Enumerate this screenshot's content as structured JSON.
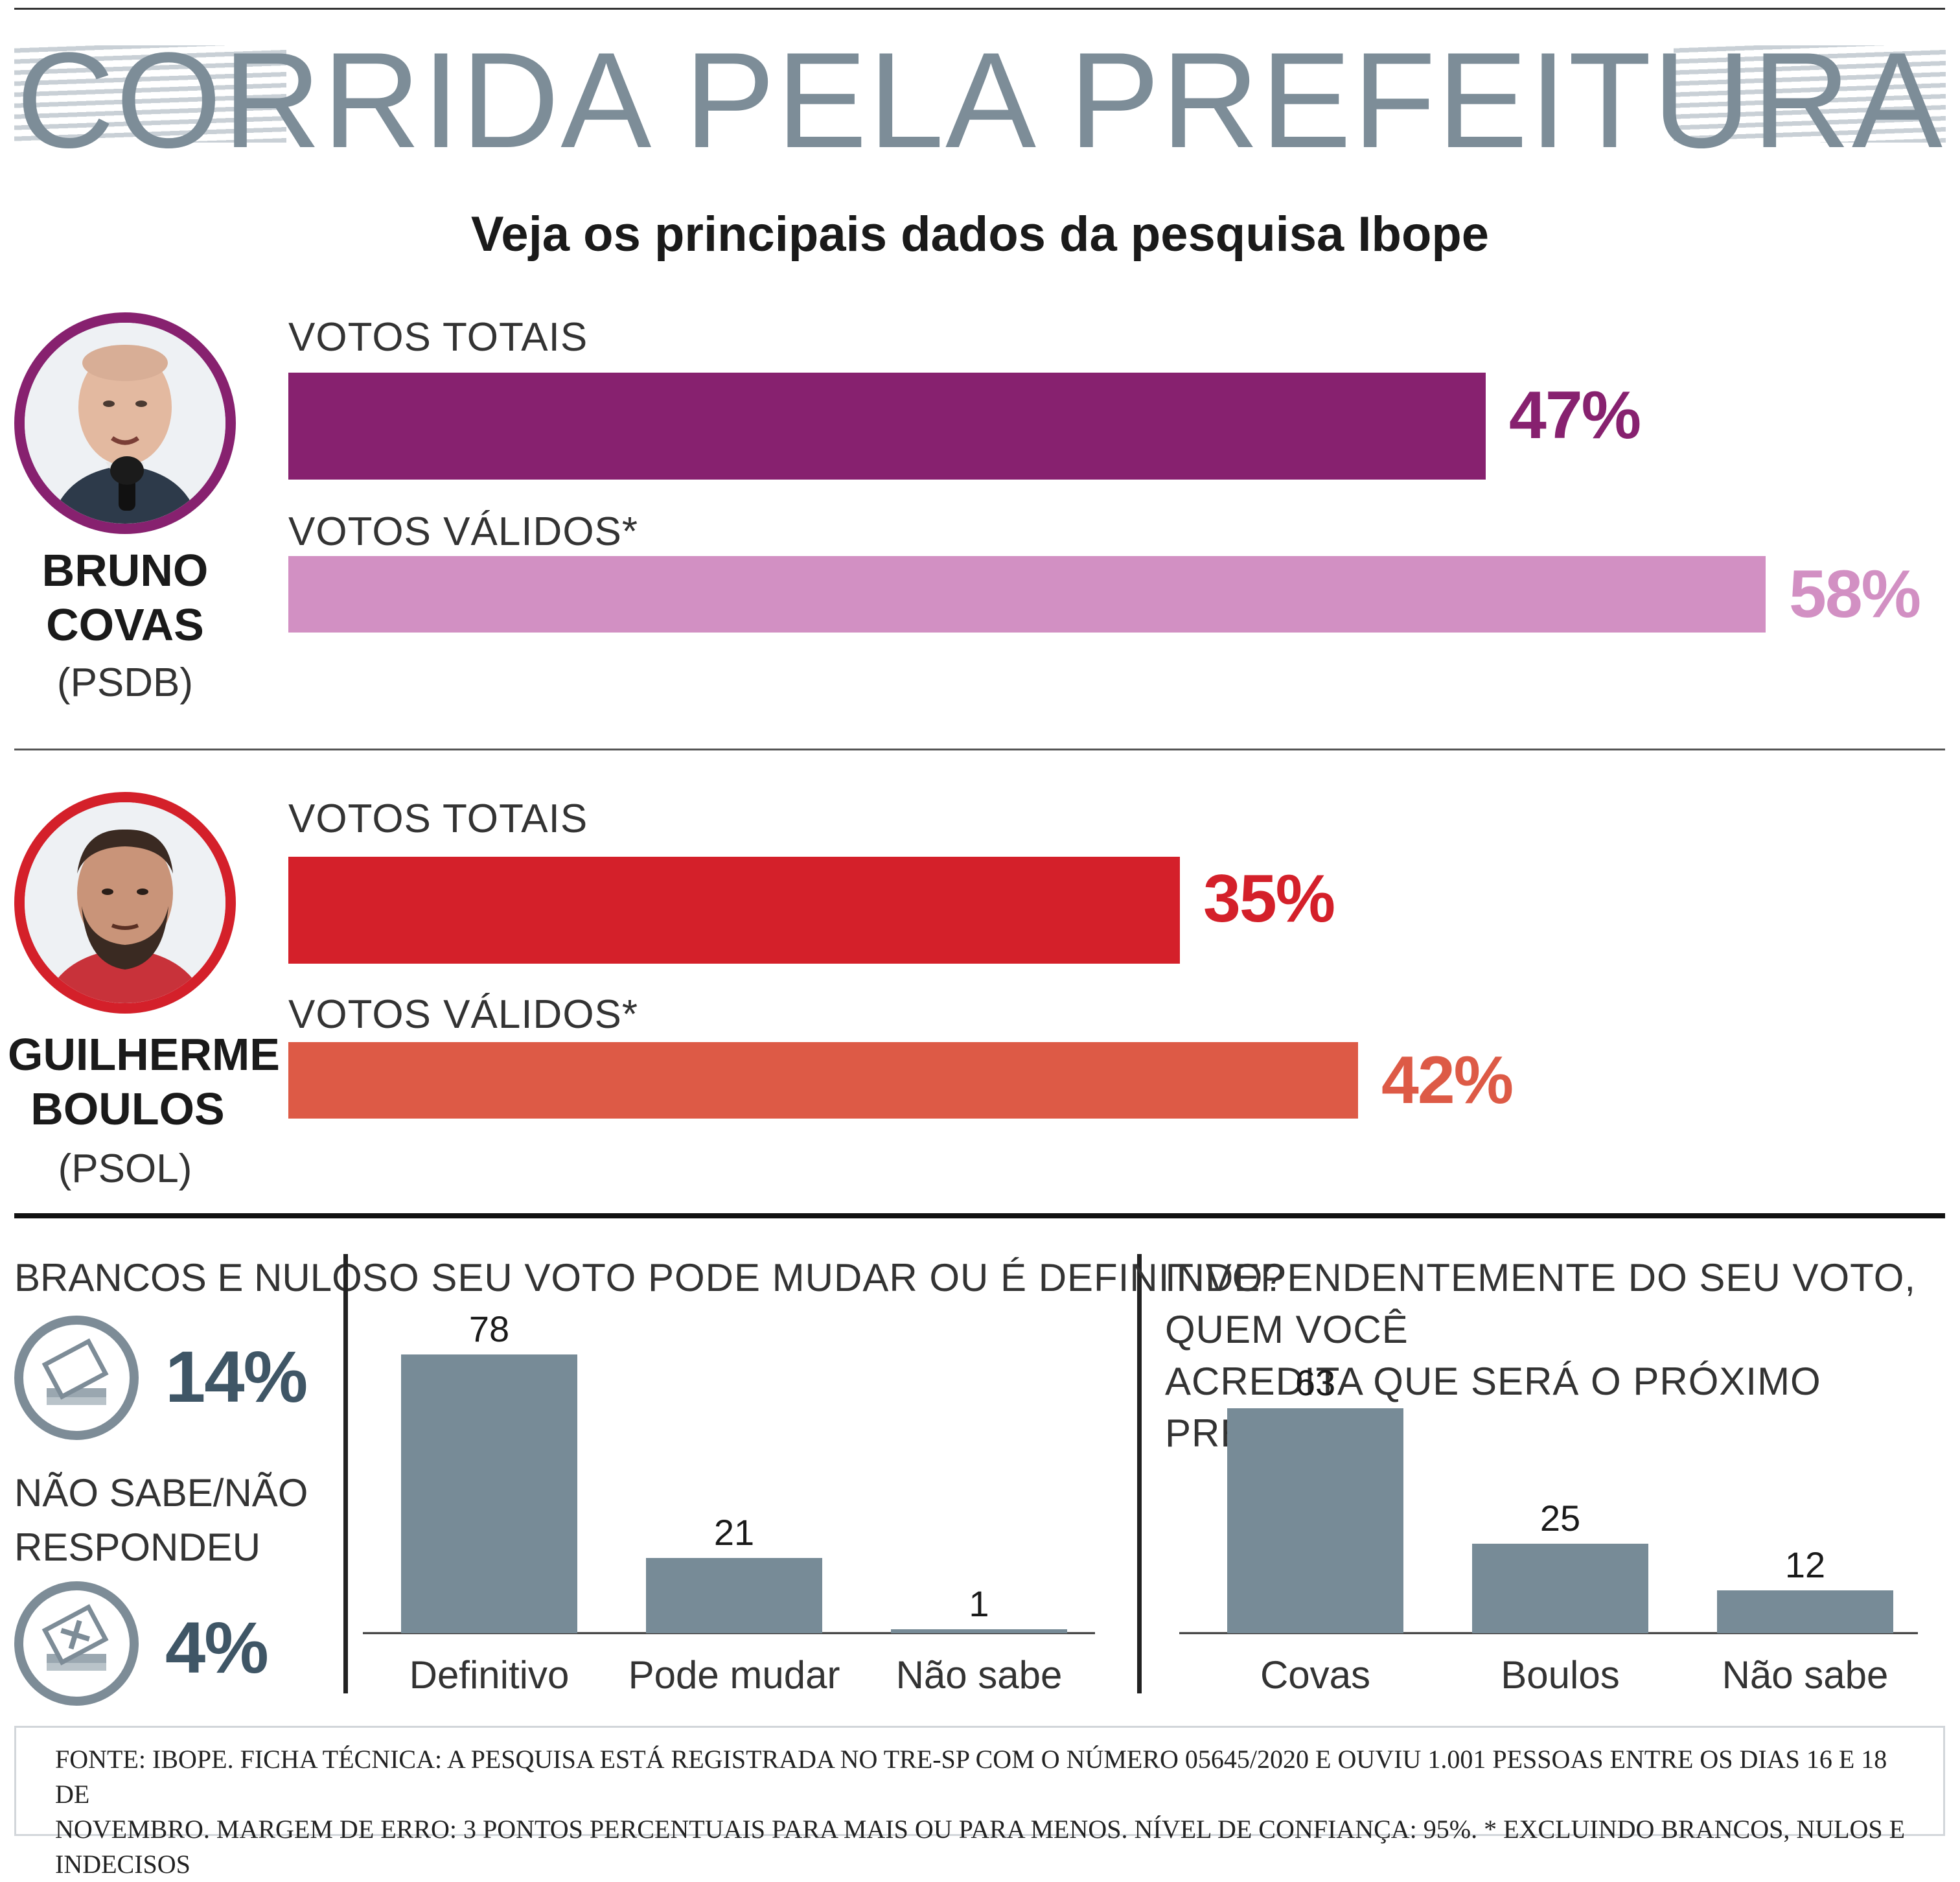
{
  "header": {
    "title": "CORRIDA PELA PREFEITURA",
    "subtitle": "Veja os principais dados da pesquisa Ibope"
  },
  "labels": {
    "votos_totais": "VOTOS TOTAIS",
    "votos_validos": "VOTOS VÁLIDOS*"
  },
  "candidates": [
    {
      "name_line1": "BRUNO",
      "name_line2": "COVAS",
      "party": "(PSDB)",
      "votos_totais": "47%",
      "votos_validos": "58%"
    },
    {
      "name_line1": "GUILHERME",
      "name_line2": "BOULOS",
      "party": "(PSOL)",
      "votos_totais": "35%",
      "votos_validos": "42%"
    }
  ],
  "side": {
    "brancos_label": "BRANCOS E NULOS",
    "brancos_value": "14%",
    "nao_sabe_line1": "NÃO SABE/NÃO",
    "nao_sabe_line2": "RESPONDEU",
    "nao_sabe_value": "4%"
  },
  "q1": {
    "title": "O SEU VOTO PODE MUDAR OU É DEFINITIVO?"
  },
  "q2": {
    "title_line1": "INDEPENDENTEMENTE DO SEU VOTO, QUEM VOCÊ",
    "title_line2": "ACREDITA QUE SERÁ O PRÓXIMO PREFEITO?"
  },
  "footer": {
    "line1": "FONTE: IBOPE. FICHA TÉCNICA: A PESQUISA ESTÁ REGISTRADA NO TRE-SP COM O NÚMERO 05645/2020 E OUVIU 1.001 PESSOAS ENTRE OS DIAS 16 E 18 DE",
    "line2": "NOVEMBRO. MARGEM DE ERRO: 3 PONTOS PERCENTUAIS PARA MAIS OU PARA MENOS. NÍVEL DE CONFIANÇA: 95%.   * EXCLUINDO BRANCOS, NULOS E INDECISOS"
  },
  "colors": {
    "covas_totais": "#87216f",
    "covas_validos": "#d290c3",
    "boulos_totais": "#d4202a",
    "boulos_validos": "#dd5a46",
    "small_bars": "#778b97",
    "title": "#7d8d98"
  },
  "chart_data": [
    {
      "type": "bar",
      "orientation": "horizontal",
      "title": "BRUNO COVAS (PSDB)",
      "categories": [
        "VOTOS TOTAIS",
        "VOTOS VÁLIDOS*"
      ],
      "values": [
        47,
        58
      ],
      "unit": "%",
      "xlim": [
        0,
        58
      ]
    },
    {
      "type": "bar",
      "orientation": "horizontal",
      "title": "GUILHERME BOULOS (PSOL)",
      "categories": [
        "VOTOS TOTAIS",
        "VOTOS VÁLIDOS*"
      ],
      "values": [
        35,
        42
      ],
      "unit": "%",
      "xlim": [
        0,
        58
      ]
    },
    {
      "type": "bar",
      "title": "O SEU VOTO PODE MUDAR OU É DEFINITIVO?",
      "categories": [
        "Definitivo",
        "Pode mudar",
        "Não sabe"
      ],
      "values": [
        78,
        21,
        1
      ],
      "ylim": [
        0,
        78
      ]
    },
    {
      "type": "bar",
      "title": "INDEPENDENTEMENTE DO SEU VOTO, QUEM VOCÊ ACREDITA QUE SERÁ O PRÓXIMO PREFEITO?",
      "categories": [
        "Covas",
        "Boulos",
        "Não sabe"
      ],
      "values": [
        63,
        25,
        12
      ],
      "ylim": [
        0,
        78
      ]
    }
  ]
}
